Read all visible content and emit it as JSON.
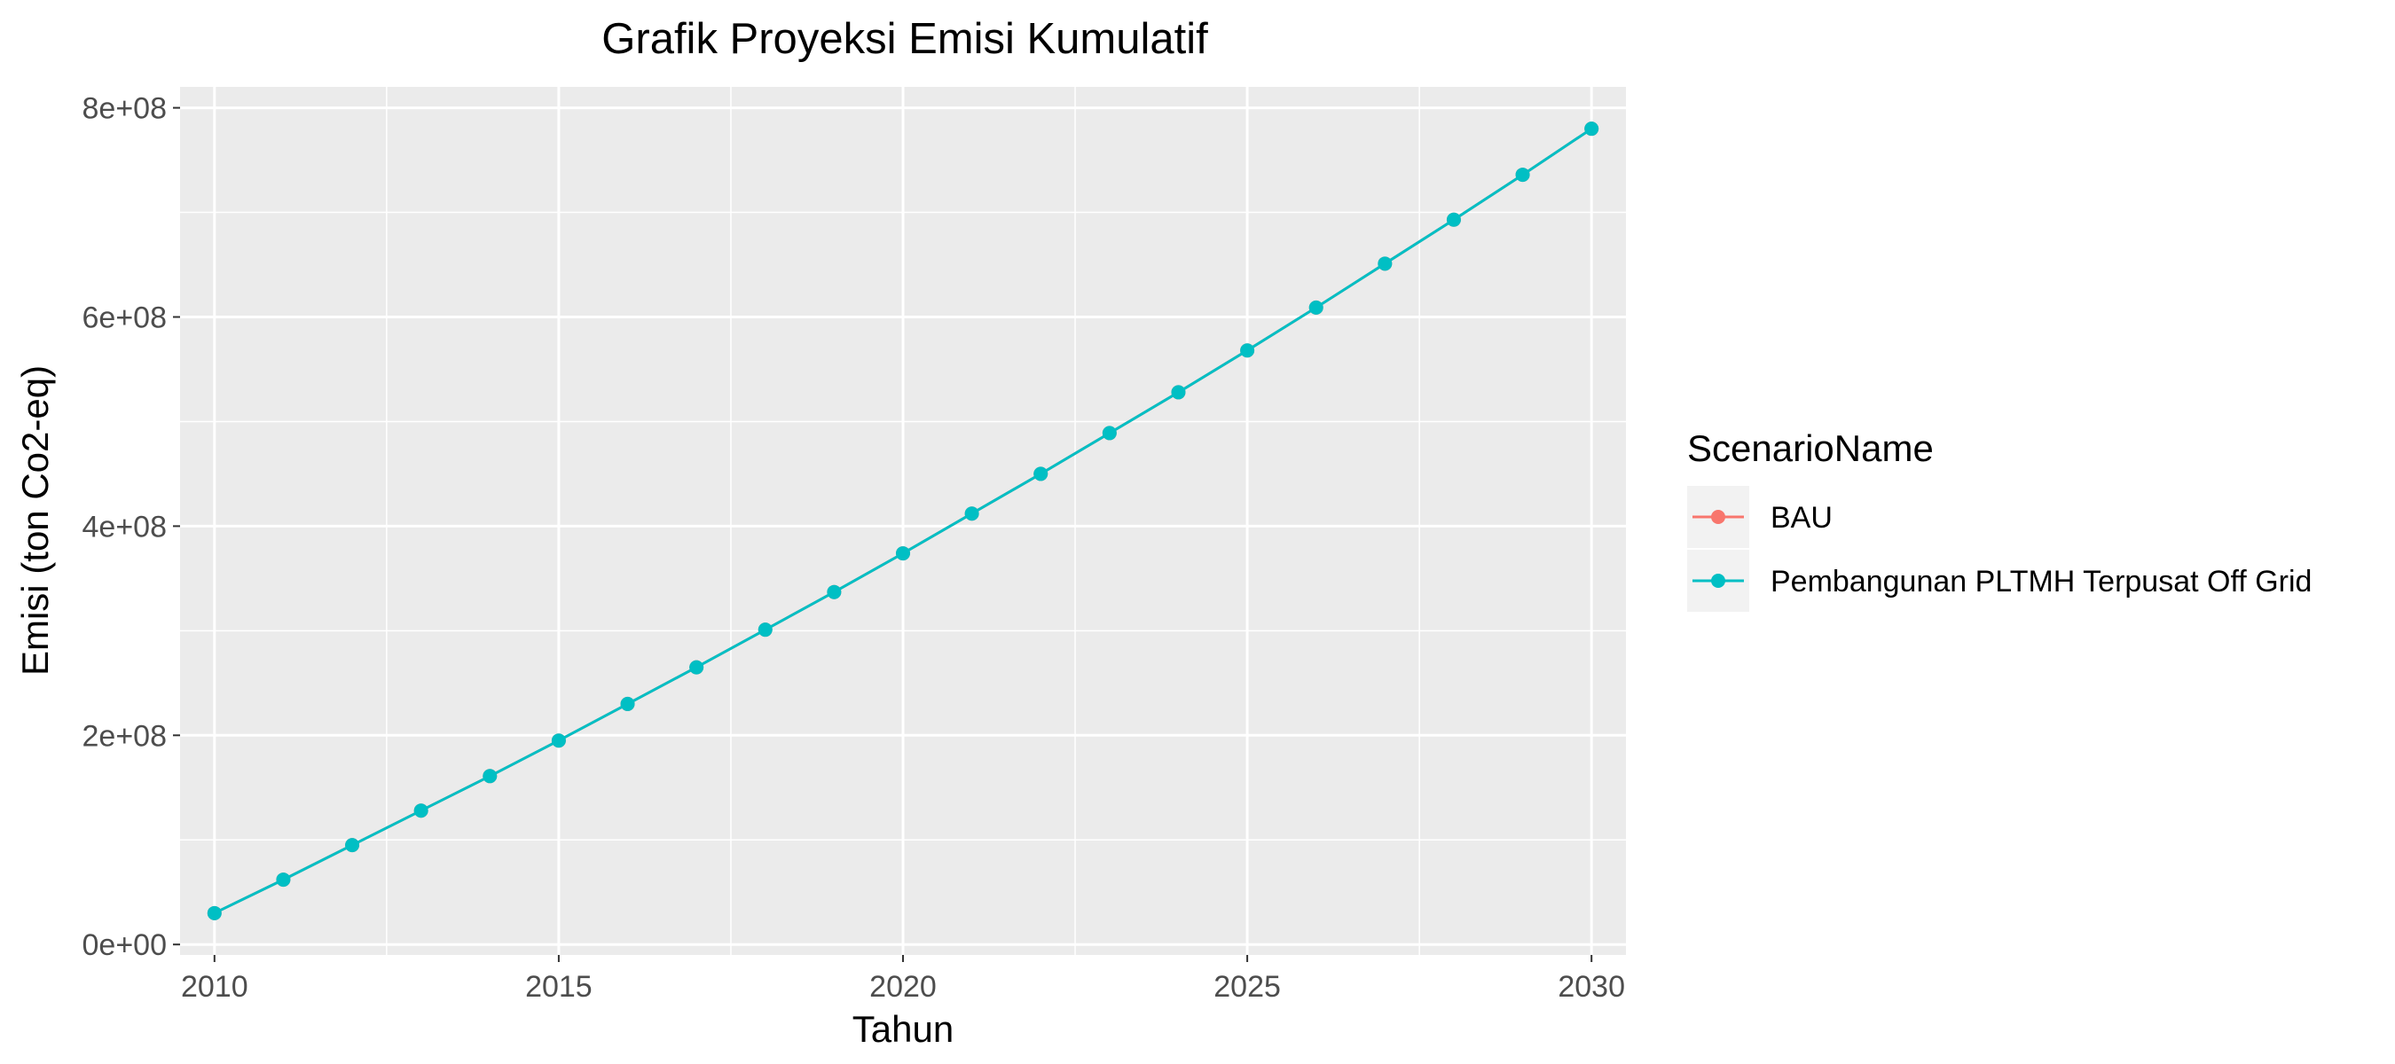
{
  "chart_data": {
    "type": "line",
    "title": "Grafik Proyeksi Emisi Kumulatif",
    "xlabel": "Tahun",
    "ylabel": "Emisi (ton Co2-eq)",
    "xlim": [
      2009.5,
      2030.5
    ],
    "ylim": [
      -10000000.0,
      820000000.0
    ],
    "x_ticks": [
      2010,
      2015,
      2020,
      2025,
      2030
    ],
    "x_tick_labels": [
      "2010",
      "2015",
      "2020",
      "2025",
      "2030"
    ],
    "y_ticks": [
      0,
      200000000,
      400000000,
      600000000,
      800000000
    ],
    "y_tick_labels": [
      "0e+00",
      "2e+08",
      "4e+08",
      "6e+08",
      "8e+08"
    ],
    "grid": true,
    "legend": {
      "title": "ScenarioName",
      "position": "right"
    },
    "x": [
      2010,
      2011,
      2012,
      2013,
      2014,
      2015,
      2016,
      2017,
      2018,
      2019,
      2020,
      2021,
      2022,
      2023,
      2024,
      2025,
      2026,
      2027,
      2028,
      2029,
      2030
    ],
    "series": [
      {
        "name": "BAU",
        "color": "#F8766D",
        "values": [
          30000000,
          62000000,
          95000000,
          128000000,
          161000000,
          195000000,
          230000000,
          265000000,
          301000000,
          337000000,
          374000000,
          412000000,
          450000000,
          489000000,
          528000000,
          568000000,
          609000000,
          651000000,
          693000000,
          736000000,
          780000000
        ]
      },
      {
        "name": "Pembangunan PLTMH Terpusat Off Grid",
        "color": "#00BFC4",
        "values": [
          30000000,
          62000000,
          95000000,
          128000000,
          161000000,
          195000000,
          230000000,
          265000000,
          301000000,
          337000000,
          374000000,
          412000000,
          450000000,
          489000000,
          528000000,
          568000000,
          609000000,
          651000000,
          693000000,
          736000000,
          780000000
        ]
      }
    ]
  }
}
